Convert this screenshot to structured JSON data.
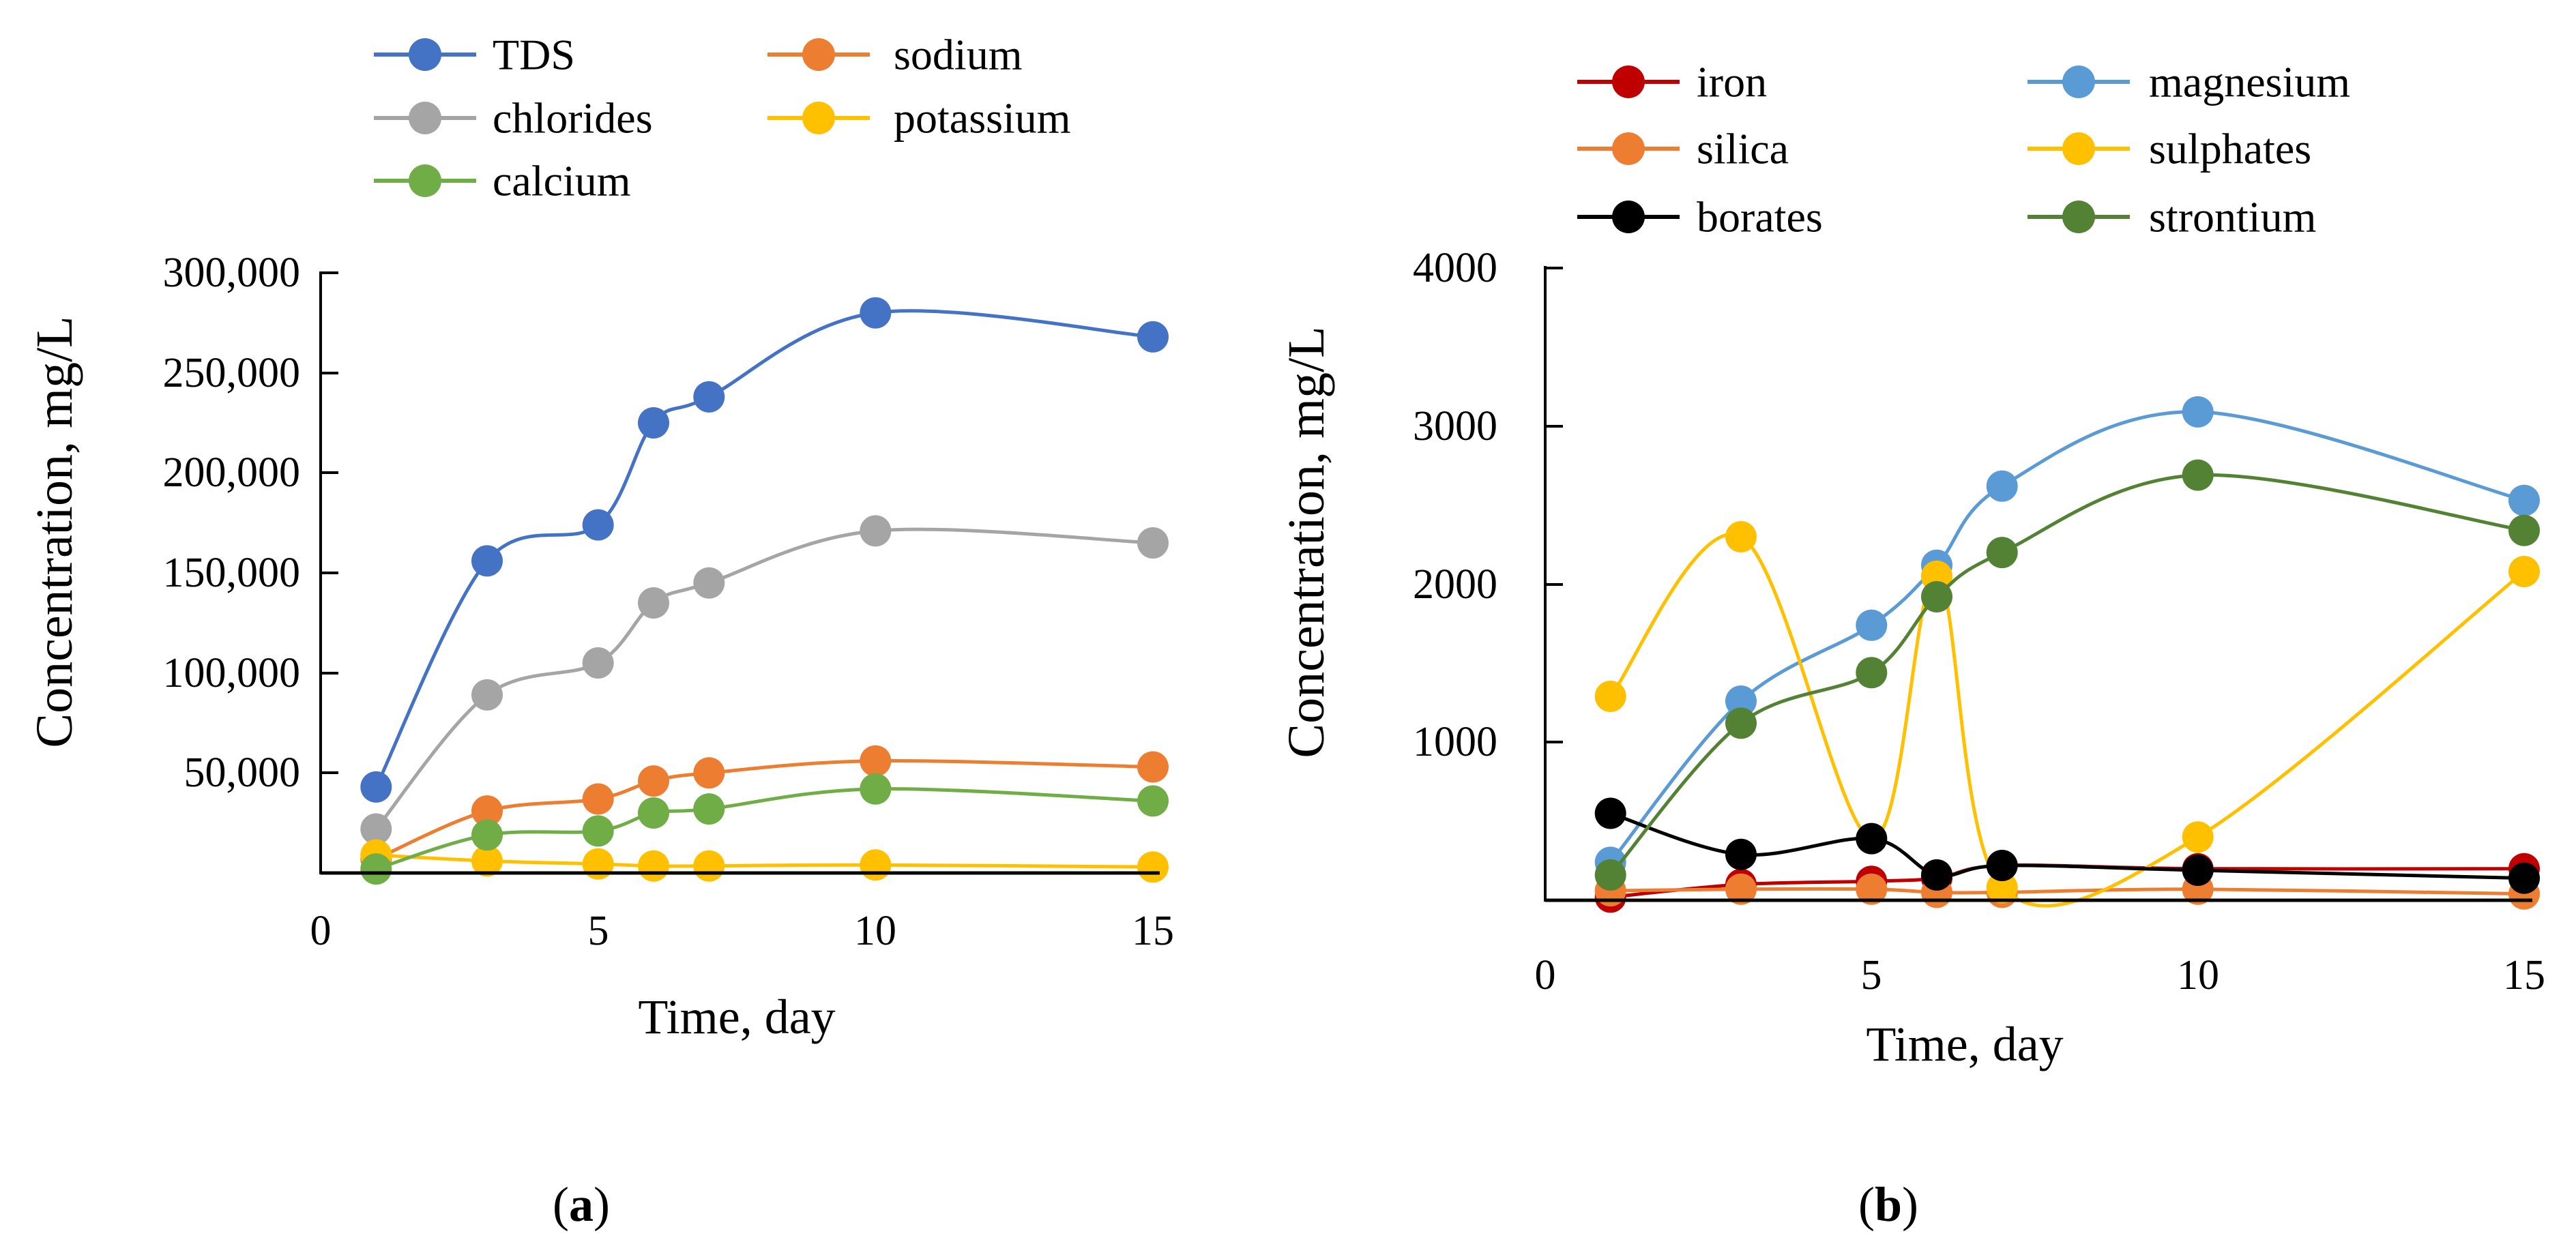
{
  "panels": {
    "a": {
      "label_open": "(",
      "label_letter": "a",
      "label_close": ")"
    },
    "b": {
      "label_open": "(",
      "label_letter": "b",
      "label_close": ")"
    }
  },
  "chart_data": [
    {
      "type": "line",
      "panel": "a",
      "title": "",
      "xlabel": "Time, day",
      "ylabel": "Concentration, mg/L",
      "xlim": [
        0,
        15
      ],
      "ylim": [
        0,
        300000
      ],
      "xticks": [
        0,
        5,
        10,
        15
      ],
      "yticks": [
        50000,
        100000,
        150000,
        200000,
        250000,
        300000
      ],
      "xtick_labels": [
        "0",
        "5",
        "10",
        "15"
      ],
      "ytick_labels": [
        "50,000",
        "100,000",
        "150,000",
        "200,000",
        "250,000",
        "300,000"
      ],
      "legend_position": "top",
      "x": [
        1,
        3,
        5,
        6,
        7,
        10,
        15
      ],
      "series": [
        {
          "name": "TDS",
          "color": "#4472C4",
          "values": [
            43000,
            156000,
            174000,
            225000,
            238000,
            280000,
            268000
          ]
        },
        {
          "name": "sodium",
          "color": "#ED7D31",
          "values": [
            7000,
            31000,
            37000,
            46000,
            50000,
            56000,
            53000
          ]
        },
        {
          "name": "chlorides",
          "color": "#A5A5A5",
          "values": [
            22000,
            89000,
            105000,
            135000,
            145000,
            171000,
            165000
          ]
        },
        {
          "name": "potassium",
          "color": "#FFC000",
          "values": [
            9000,
            6000,
            4500,
            3500,
            3500,
            4000,
            3000
          ]
        },
        {
          "name": "calcium",
          "color": "#70AD47",
          "values": [
            2000,
            19000,
            21000,
            30000,
            32000,
            42000,
            36000
          ]
        }
      ]
    },
    {
      "type": "line",
      "panel": "b",
      "title": "",
      "xlabel": "Time, day",
      "ylabel": "Concentration, mg/L",
      "xlim": [
        0,
        15
      ],
      "ylim": [
        0,
        4000
      ],
      "xticks": [
        0,
        5,
        10,
        15
      ],
      "yticks": [
        1000,
        2000,
        3000,
        4000
      ],
      "xtick_labels": [
        "0",
        "5",
        "10",
        "15"
      ],
      "ytick_labels": [
        "1000",
        "2000",
        "3000",
        "4000"
      ],
      "legend_position": "top",
      "x": [
        1,
        3,
        5,
        6,
        7,
        10,
        15
      ],
      "series": [
        {
          "name": "iron",
          "color": "#C00000",
          "values": [
            20,
            100,
            120,
            140,
            220,
            200,
            200
          ]
        },
        {
          "name": "magnesium",
          "color": "#5B9BD5",
          "values": [
            240,
            1260,
            1740,
            2120,
            2620,
            3090,
            2530
          ]
        },
        {
          "name": "silica",
          "color": "#ED7D31",
          "values": [
            60,
            70,
            70,
            50,
            50,
            70,
            40
          ]
        },
        {
          "name": "sulphates",
          "color": "#FFC000",
          "values": [
            1290,
            2300,
            390,
            2050,
            80,
            400,
            2080
          ]
        },
        {
          "name": "borates",
          "color": "#000000",
          "values": [
            550,
            290,
            390,
            160,
            220,
            190,
            140
          ]
        },
        {
          "name": "strontium",
          "color": "#548235",
          "values": [
            160,
            1120,
            1440,
            1920,
            2200,
            2690,
            2340
          ]
        }
      ]
    }
  ]
}
